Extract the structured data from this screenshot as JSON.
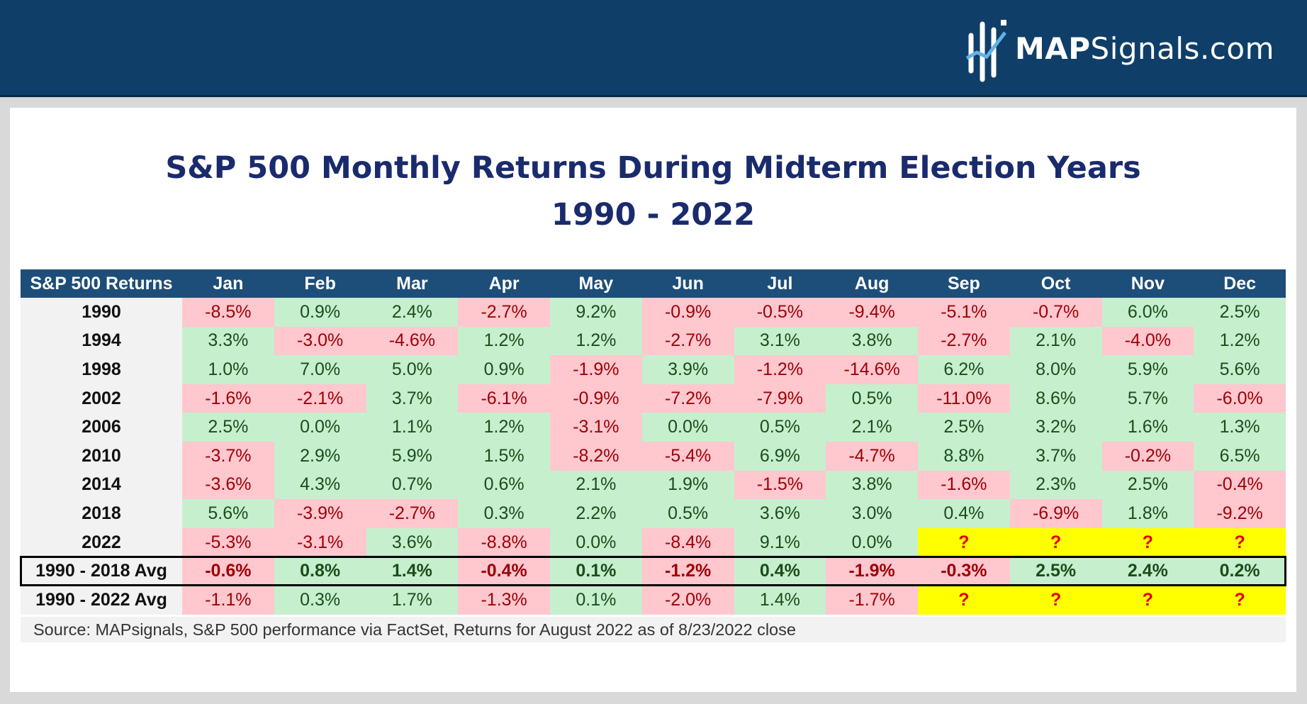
{
  "brand": {
    "logo_bold": "MAP",
    "logo_light": "Signals.com",
    "colors": {
      "header_bg": "#0f3f68",
      "title": "#1a2b6d",
      "table_header": "#1d4e79",
      "positive": "#c6efce",
      "negative": "#ffc7ce",
      "unknown": "#ffff00"
    }
  },
  "chart_data": {
    "type": "table",
    "title": "S&P 500 Monthly Returns During Midterm Election Years",
    "subtitle": "1990 - 2022",
    "corner_header": "S&P 500 Returns",
    "columns": [
      "Jan",
      "Feb",
      "Mar",
      "Apr",
      "May",
      "Jun",
      "Jul",
      "Aug",
      "Sep",
      "Oct",
      "Nov",
      "Dec"
    ],
    "rows": [
      {
        "label": "1990",
        "values": [
          "-8.5%",
          "0.9%",
          "2.4%",
          "-2.7%",
          "9.2%",
          "-0.9%",
          "-0.5%",
          "-9.4%",
          "-5.1%",
          "-0.7%",
          "6.0%",
          "2.5%"
        ]
      },
      {
        "label": "1994",
        "values": [
          "3.3%",
          "-3.0%",
          "-4.6%",
          "1.2%",
          "1.2%",
          "-2.7%",
          "3.1%",
          "3.8%",
          "-2.7%",
          "2.1%",
          "-4.0%",
          "1.2%"
        ]
      },
      {
        "label": "1998",
        "values": [
          "1.0%",
          "7.0%",
          "5.0%",
          "0.9%",
          "-1.9%",
          "3.9%",
          "-1.2%",
          "-14.6%",
          "6.2%",
          "8.0%",
          "5.9%",
          "5.6%"
        ]
      },
      {
        "label": "2002",
        "values": [
          "-1.6%",
          "-2.1%",
          "3.7%",
          "-6.1%",
          "-0.9%",
          "-7.2%",
          "-7.9%",
          "0.5%",
          "-11.0%",
          "8.6%",
          "5.7%",
          "-6.0%"
        ]
      },
      {
        "label": "2006",
        "values": [
          "2.5%",
          "0.0%",
          "1.1%",
          "1.2%",
          "-3.1%",
          "0.0%",
          "0.5%",
          "2.1%",
          "2.5%",
          "3.2%",
          "1.6%",
          "1.3%"
        ]
      },
      {
        "label": "2010",
        "values": [
          "-3.7%",
          "2.9%",
          "5.9%",
          "1.5%",
          "-8.2%",
          "-5.4%",
          "6.9%",
          "-4.7%",
          "8.8%",
          "3.7%",
          "-0.2%",
          "6.5%"
        ]
      },
      {
        "label": "2014",
        "values": [
          "-3.6%",
          "4.3%",
          "0.7%",
          "0.6%",
          "2.1%",
          "1.9%",
          "-1.5%",
          "3.8%",
          "-1.6%",
          "2.3%",
          "2.5%",
          "-0.4%"
        ]
      },
      {
        "label": "2018",
        "values": [
          "5.6%",
          "-3.9%",
          "-2.7%",
          "0.3%",
          "2.2%",
          "0.5%",
          "3.6%",
          "3.0%",
          "0.4%",
          "-6.9%",
          "1.8%",
          "-9.2%"
        ]
      },
      {
        "label": "2022",
        "values": [
          "-5.3%",
          "-3.1%",
          "3.6%",
          "-8.8%",
          "0.0%",
          "-8.4%",
          "9.1%",
          "0.0%",
          "?",
          "?",
          "?",
          "?"
        ]
      }
    ],
    "averages": [
      {
        "label": "1990 - 2018 Avg",
        "values": [
          "-0.6%",
          "0.8%",
          "1.4%",
          "-0.4%",
          "0.1%",
          "-1.2%",
          "0.4%",
          "-1.9%",
          "-0.3%",
          "2.5%",
          "2.4%",
          "0.2%"
        ]
      },
      {
        "label": "1990 - 2022 Avg",
        "values": [
          "-1.1%",
          "0.3%",
          "1.7%",
          "-1.3%",
          "0.1%",
          "-2.0%",
          "1.4%",
          "-1.7%",
          "?",
          "?",
          "?",
          "?"
        ]
      }
    ],
    "source": "Source: MAPsignals, S&P 500 performance via FactSet, Returns for August 2022 as of 8/23/2022 close"
  }
}
